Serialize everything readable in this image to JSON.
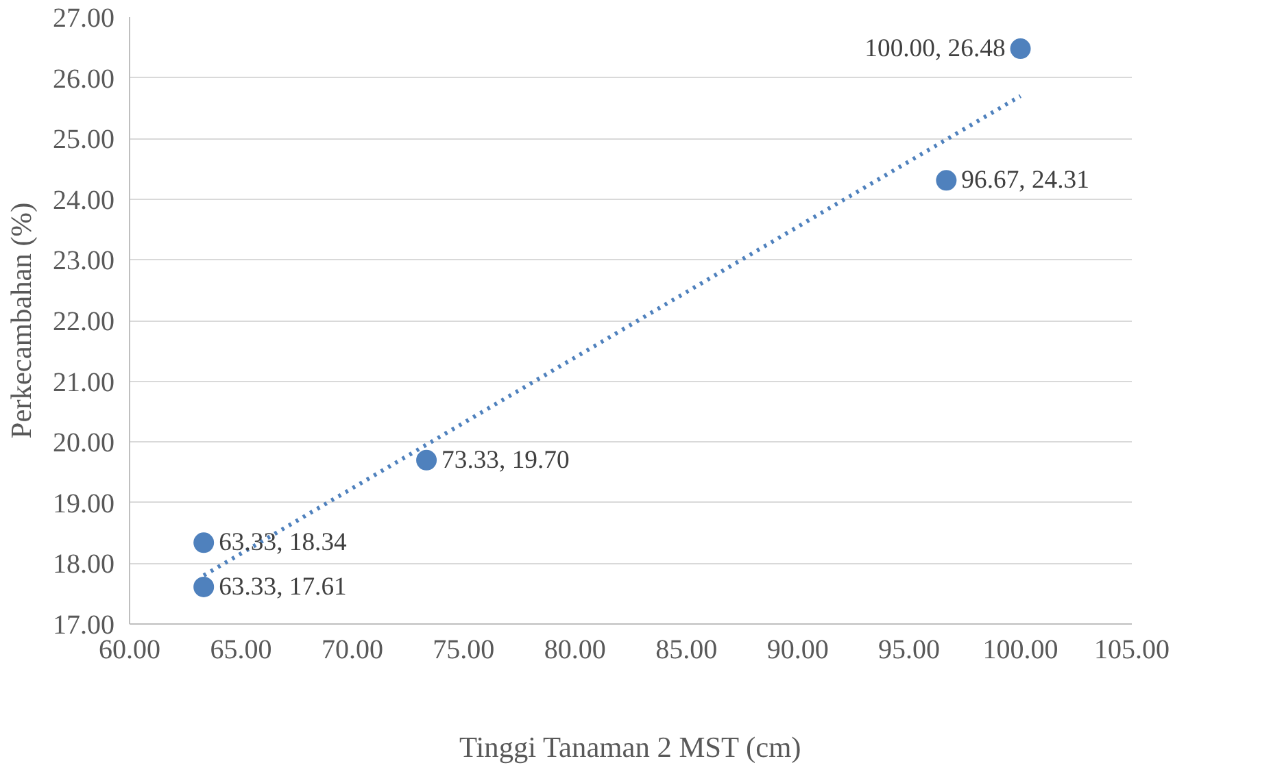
{
  "chart_data": {
    "type": "scatter",
    "xlabel": "Tinggi Tanaman 2 MST (cm)",
    "ylabel": "Perkecambahan (%)",
    "xlim": [
      60,
      105
    ],
    "ylim": [
      17,
      27
    ],
    "xticks": [
      {
        "value": 60,
        "label": "60.00"
      },
      {
        "value": 65,
        "label": "65.00"
      },
      {
        "value": 70,
        "label": "70.00"
      },
      {
        "value": 75,
        "label": "75.00"
      },
      {
        "value": 80,
        "label": "80.00"
      },
      {
        "value": 85,
        "label": "85.00"
      },
      {
        "value": 90,
        "label": "90.00"
      },
      {
        "value": 95,
        "label": "95.00"
      },
      {
        "value": 100,
        "label": "100.00"
      },
      {
        "value": 105,
        "label": "105.00"
      }
    ],
    "yticks": [
      {
        "value": 17,
        "label": "17.00"
      },
      {
        "value": 18,
        "label": "18.00"
      },
      {
        "value": 19,
        "label": "19.00"
      },
      {
        "value": 20,
        "label": "20.00"
      },
      {
        "value": 21,
        "label": "21.00"
      },
      {
        "value": 22,
        "label": "22.00"
      },
      {
        "value": 23,
        "label": "23.00"
      },
      {
        "value": 24,
        "label": "24.00"
      },
      {
        "value": 25,
        "label": "25.00"
      },
      {
        "value": 26,
        "label": "26.00"
      },
      {
        "value": 27,
        "label": "27.00"
      }
    ],
    "grid": "y",
    "series": [
      {
        "color": "#4f81bd",
        "marker": "circle",
        "x": [
          63.33,
          63.33,
          73.33,
          96.67,
          100.0
        ],
        "values": [
          18.34,
          17.61,
          19.7,
          24.31,
          26.48
        ],
        "value_labels": [
          "63.33, 18.34",
          "63.33, 17.61",
          "73.33, 19.70",
          "96.67, 24.31",
          "100.00, 26.48"
        ]
      },
      {
        "type": "line",
        "color": "#4f81bd",
        "line_style": "dotted",
        "x": [
          63.33,
          100.0
        ],
        "values": [
          17.8,
          25.7
        ]
      }
    ]
  }
}
